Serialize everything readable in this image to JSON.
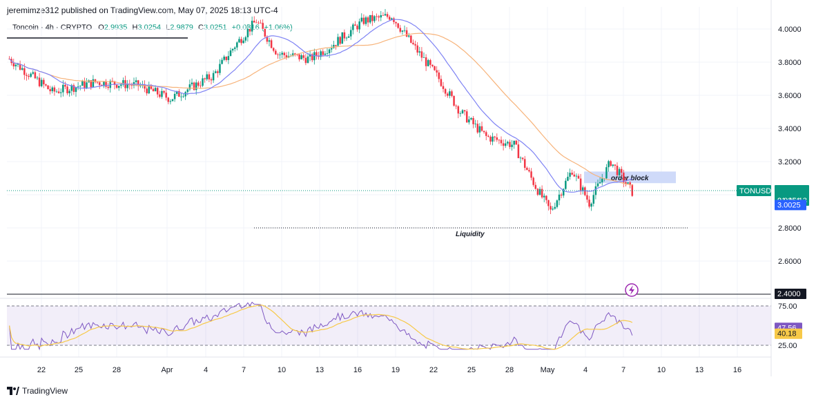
{
  "header": {
    "publisher": "jeremimze312 published on TradingView.com, May 07, 2025 18:13 UTC-4"
  },
  "legend": {
    "symbol": "Toncoin · 4h · CRYPTO",
    "o_label": "O",
    "o": "2.9935",
    "h_label": "H",
    "h": "3.0254",
    "l_label": "L",
    "l": "2.9879",
    "c_label": "C",
    "c": "3.0251",
    "change": "+0.0316 (+1.06%)"
  },
  "price_axis": {
    "ticks": [
      "4.0000",
      "3.8000",
      "3.6000",
      "3.4000",
      "3.2000",
      "3.0000",
      "2.8000",
      "2.6000",
      "2.4000"
    ],
    "tick_values": [
      4.0,
      3.8,
      3.6,
      3.4,
      3.2,
      3.0,
      2.8,
      2.6,
      2.4
    ],
    "range": [
      2.4,
      4.1
    ]
  },
  "badges": {
    "symbol": "TONUSD",
    "price": "3.0251",
    "countdown": "01:46:13",
    "ma_value": "3.0025",
    "level": "2.4000",
    "rsi_value": "47.56",
    "rsi_ma_value": "40.18"
  },
  "rsi_axis": {
    "ticks": [
      "75.00",
      "25.00"
    ],
    "tick_values": [
      75,
      25
    ],
    "range": [
      18,
      82
    ]
  },
  "time_axis": {
    "labels": [
      "22",
      "25",
      "28",
      "Apr",
      "4",
      "7",
      "10",
      "13",
      "16",
      "19",
      "22",
      "25",
      "28",
      "May",
      "4",
      "7",
      "10",
      "13",
      "16"
    ]
  },
  "annotations": {
    "order_block": "order block",
    "liquidity": "Liquidity"
  },
  "colors": {
    "up": "#089981",
    "down": "#f23645",
    "ma_fast": "#7e82f4",
    "ma_slow": "#f7b37a",
    "rsi": "#7e57c2",
    "rsi_ma": "#f7c948",
    "badge_green": "#089981",
    "badge_blue": "#2962ff",
    "order_block": "#c7d3f8"
  },
  "chart_data": {
    "type": "candlestick",
    "key_prices": [
      4.0,
      3.85,
      3.62,
      3.0,
      2.85,
      2.78,
      2.95,
      3.02,
      3.38,
      3.22,
      3.12,
      2.97,
      3.0251
    ],
    "levels": {
      "liquidity": 2.8,
      "horizontal": 2.4
    },
    "order_block_range": [
      3.07,
      3.14
    ],
    "rsi_levels": [
      75,
      25
    ]
  },
  "footer": {
    "brand": "TradingView"
  }
}
